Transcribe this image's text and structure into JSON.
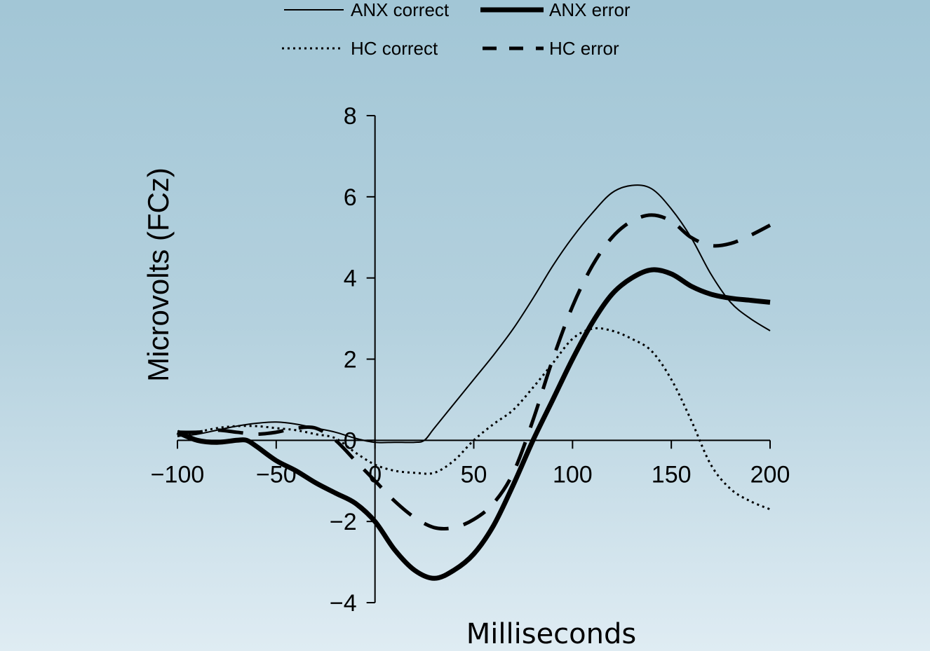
{
  "chart_data": {
    "type": "line",
    "xlabel": "Milliseconds",
    "ylabel": "Microvolts (FCz)",
    "xlim": [
      -100,
      200
    ],
    "ylim": [
      -4,
      8
    ],
    "xticks": [
      -100,
      -50,
      0,
      50,
      100,
      150,
      200
    ],
    "yticks": [
      -4,
      -2,
      0,
      2,
      4,
      6,
      8
    ],
    "xtick_labels": [
      "−100",
      "−50",
      "0",
      "50",
      "100",
      "150",
      "200"
    ],
    "ytick_labels": [
      "−4",
      "−2",
      "0",
      "2",
      "4",
      "6",
      "8"
    ],
    "legend": "top",
    "grid": false,
    "series": [
      {
        "name": "ANX correct",
        "style": "thin-solid",
        "color": "#000000",
        "x": [
          -100,
          -90,
          -80,
          -70,
          -60,
          -50,
          -40,
          -30,
          -20,
          -10,
          0,
          10,
          20,
          25,
          30,
          40,
          50,
          60,
          70,
          80,
          90,
          100,
          110,
          120,
          130,
          140,
          150,
          160,
          170,
          180,
          190,
          200
        ],
        "y": [
          0.1,
          0.15,
          0.25,
          0.35,
          0.42,
          0.45,
          0.4,
          0.3,
          0.2,
          0.05,
          -0.05,
          -0.05,
          -0.05,
          0.0,
          0.3,
          0.9,
          1.5,
          2.1,
          2.75,
          3.5,
          4.3,
          5.0,
          5.6,
          6.1,
          6.28,
          6.2,
          5.7,
          5.0,
          4.1,
          3.4,
          3.0,
          2.7
        ]
      },
      {
        "name": "ANX error",
        "style": "thick-solid",
        "color": "#000000",
        "x": [
          -100,
          -90,
          -80,
          -70,
          -65,
          -60,
          -50,
          -40,
          -30,
          -20,
          -10,
          0,
          10,
          20,
          30,
          40,
          50,
          60,
          70,
          80,
          90,
          100,
          110,
          120,
          130,
          140,
          150,
          160,
          170,
          180,
          190,
          200
        ],
        "y": [
          0.2,
          0.0,
          -0.05,
          0.0,
          0.0,
          -0.15,
          -0.5,
          -0.75,
          -1.05,
          -1.3,
          -1.55,
          -2.0,
          -2.7,
          -3.2,
          -3.4,
          -3.2,
          -2.8,
          -2.1,
          -1.1,
          0.0,
          1.0,
          2.0,
          2.9,
          3.6,
          4.0,
          4.2,
          4.1,
          3.8,
          3.6,
          3.5,
          3.45,
          3.4
        ]
      },
      {
        "name": "HC correct",
        "style": "dotted",
        "color": "#000000",
        "x": [
          -100,
          -90,
          -80,
          -70,
          -60,
          -50,
          -40,
          -30,
          -20,
          -10,
          0,
          10,
          20,
          30,
          40,
          50,
          60,
          70,
          80,
          90,
          100,
          110,
          120,
          130,
          140,
          150,
          160,
          170,
          180,
          190,
          200
        ],
        "y": [
          0.1,
          0.2,
          0.3,
          0.35,
          0.35,
          0.3,
          0.25,
          0.15,
          0.05,
          -0.3,
          -0.6,
          -0.75,
          -0.8,
          -0.8,
          -0.5,
          0.0,
          0.4,
          0.75,
          1.3,
          1.9,
          2.5,
          2.75,
          2.7,
          2.5,
          2.2,
          1.5,
          0.5,
          -0.6,
          -1.2,
          -1.5,
          -1.7
        ]
      },
      {
        "name": "HC error",
        "style": "thick-dashed",
        "color": "#000000",
        "x": [
          -100,
          -90,
          -80,
          -70,
          -60,
          -50,
          -40,
          -30,
          -20,
          -10,
          0,
          10,
          20,
          30,
          40,
          50,
          60,
          70,
          80,
          90,
          100,
          110,
          120,
          130,
          140,
          150,
          160,
          170,
          180,
          190,
          200
        ],
        "y": [
          0.2,
          0.2,
          0.25,
          0.2,
          0.15,
          0.2,
          0.3,
          0.3,
          0.0,
          -0.5,
          -1.0,
          -1.5,
          -1.9,
          -2.15,
          -2.15,
          -1.95,
          -1.55,
          -0.8,
          0.5,
          2.0,
          3.3,
          4.3,
          5.0,
          5.4,
          5.55,
          5.4,
          5.0,
          4.8,
          4.85,
          5.05,
          5.3
        ]
      }
    ]
  }
}
